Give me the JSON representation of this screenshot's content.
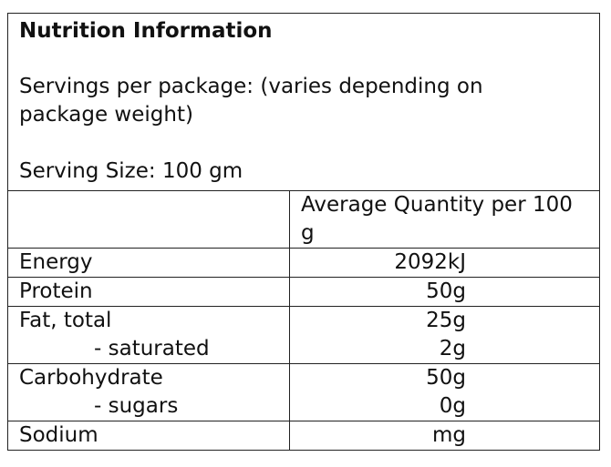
{
  "header": {
    "title": "Nutrition Information",
    "servings": "Servings per package: (varies depending on package weight)",
    "serving_size": "Serving Size: 100 gm"
  },
  "table": {
    "column_header": "Average Quantity per 100 g",
    "rows": [
      {
        "label": "Energy",
        "value": "2092kJ"
      },
      {
        "label": "Protein",
        "value": "50g"
      },
      {
        "label": "Fat, total",
        "value": "25g",
        "sub": {
          "label": "- saturated",
          "value": "2g"
        }
      },
      {
        "label": "Carbohydrate",
        "value": "50g",
        "sub": {
          "label": "- sugars",
          "value": "0g"
        }
      },
      {
        "label": "Sodium",
        "value": "mg"
      }
    ]
  }
}
